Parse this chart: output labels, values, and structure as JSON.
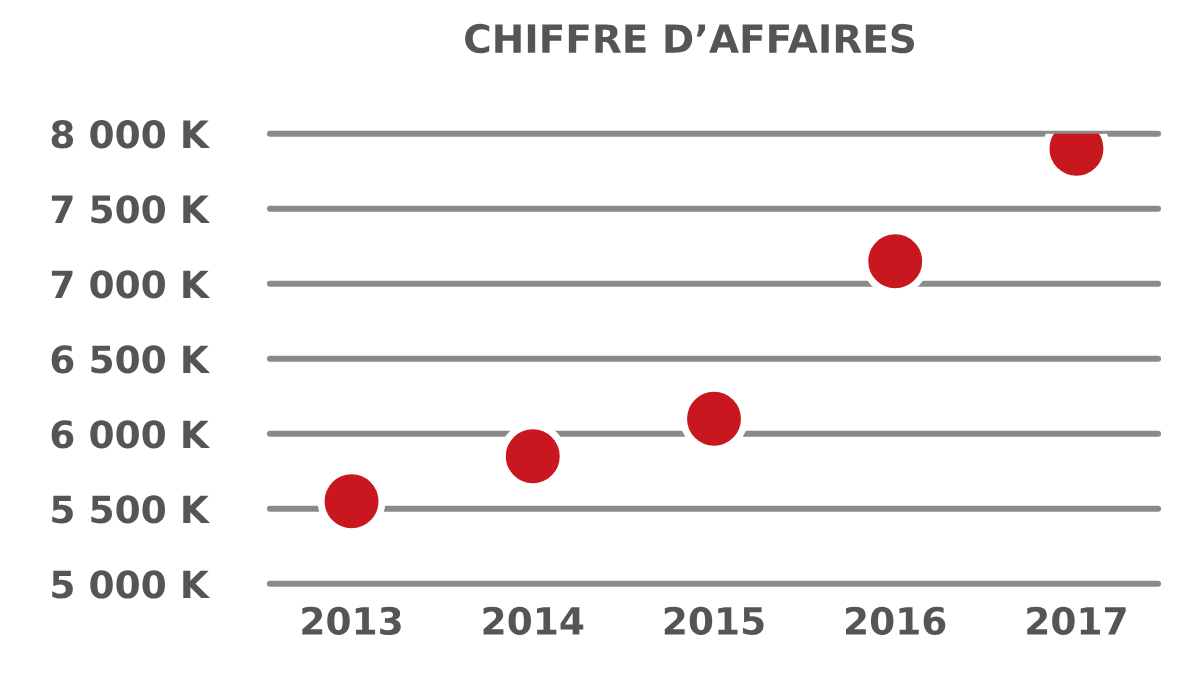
{
  "chart_data": {
    "type": "scatter",
    "title": "CHIFFRE D’AFFAIRES",
    "categories": [
      "2013",
      "2014",
      "2015",
      "2016",
      "2017"
    ],
    "series": [
      {
        "color": "#c8171e",
        "values": [
          5550,
          5850,
          6100,
          7150,
          7900
        ]
      }
    ],
    "ylim": [
      5000,
      8000
    ],
    "yticks": [
      {
        "value": 5000,
        "label": "5 000 K"
      },
      {
        "value": 5500,
        "label": "5 500 K"
      },
      {
        "value": 6000,
        "label": "6 000 K"
      },
      {
        "value": 6500,
        "label": "6 500 K"
      },
      {
        "value": 7000,
        "label": "7 000 K"
      },
      {
        "value": 7500,
        "label": "7 500 K"
      },
      {
        "value": 8000,
        "label": "8 000 K"
      }
    ],
    "grid": "y",
    "marker": "circle",
    "legend": false
  }
}
